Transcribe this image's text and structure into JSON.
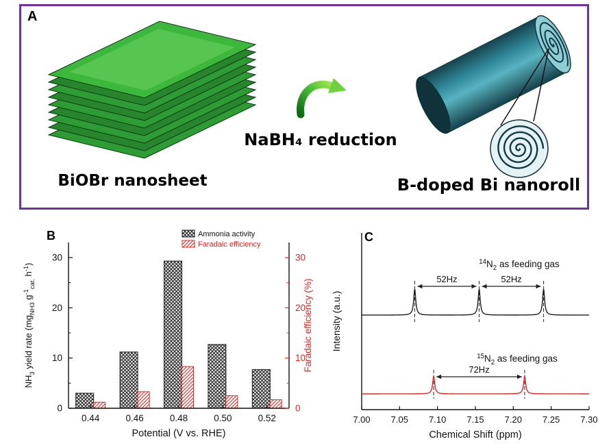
{
  "figure": {
    "panel_a": {
      "label": "A",
      "left_caption": "BiOBr nanosheet",
      "arrow_caption": "NaBH₄ reduction",
      "right_caption": "B-doped Bi nanoroll"
    },
    "panel_b": {
      "label": "B"
    },
    "panel_c": {
      "label": "C"
    }
  },
  "colors": {
    "panel_border": "#7030a0",
    "sheet_top": "#3cb83c",
    "sheet_mid": "#2d9c34",
    "sheet_dark": "#27862c",
    "sheet_edge": "#0b3a10",
    "sheet_highlight": "#6fd464",
    "roll_teal_dark": "#10323b",
    "roll_teal_light": "#8fccd4",
    "series_black": "#1c1c1c",
    "series_red": "#e8251f"
  },
  "chart_data": [
    {
      "id": "panel_b_bars",
      "type": "bar",
      "panel": "B",
      "categories": [
        "0.44",
        "0.46",
        "0.48",
        "0.50",
        "0.52"
      ],
      "series": [
        {
          "name": "Ammonia activity",
          "axis": "left",
          "color": "#1c1c1c",
          "pattern": "crosshatch",
          "values": [
            3.0,
            11.2,
            29.3,
            12.7,
            7.7
          ]
        },
        {
          "name": "Faradaic efficiency",
          "axis": "right",
          "color": "#e8251f",
          "pattern": "diagonal",
          "values": [
            1.2,
            3.3,
            8.3,
            2.5,
            1.7
          ]
        }
      ],
      "xlabel": "Potential (V vs. RHE)",
      "ylabel_left": "NH3 yield rate (mgNH3 g-1cat. h-1)",
      "ylabel_left_segments": [
        {
          "t": "NH"
        },
        {
          "t": "3",
          "s": "sub"
        },
        {
          "t": " yield rate (mg"
        },
        {
          "t": "NH3",
          "s": "sub"
        },
        {
          "t": " g"
        },
        {
          "t": "-1",
          "s": "sup"
        },
        {
          "t": "cat.",
          "s": "sub"
        },
        {
          "t": " h"
        },
        {
          "t": "-1",
          "s": "sup"
        },
        {
          "t": ")"
        }
      ],
      "ylabel_right": "Faradaic efficiency (%)",
      "ylim": [
        0,
        33
      ],
      "yticks": [
        0,
        10,
        20,
        30
      ],
      "legend_position": "top",
      "grid": false
    },
    {
      "id": "panel_c_nmr",
      "type": "line",
      "panel": "C",
      "xlabel": "Chemical Shift (ppm)",
      "ylabel": "Intensity (a.u.)",
      "xlim": [
        7.0,
        7.3
      ],
      "xticks": [
        "7.00",
        "7.05",
        "7.10",
        "7.15",
        "7.20",
        "7.25",
        "7.30"
      ],
      "series": [
        {
          "name": "14N2 as feeding gas",
          "label_segments": [
            {
              "t": "14",
              "s": "sup"
            },
            {
              "t": "N"
            },
            {
              "t": "2",
              "s": "sub"
            },
            {
              "t": " as feeding gas"
            }
          ],
          "color": "#1c1c1c",
          "peaks_ppm": [
            7.07,
            7.155,
            7.24
          ],
          "annotations": [
            {
              "label": "52Hz",
              "from": 7.07,
              "to": 7.155
            },
            {
              "label": "52Hz",
              "from": 7.155,
              "to": 7.24
            }
          ]
        },
        {
          "name": "15N2 as feeding gas",
          "label_segments": [
            {
              "t": "15",
              "s": "sup"
            },
            {
              "t": "N"
            },
            {
              "t": "2",
              "s": "sub"
            },
            {
              "t": " as feeding gas"
            }
          ],
          "color": "#e8251f",
          "peaks_ppm": [
            7.095,
            7.215
          ],
          "annotations": [
            {
              "label": "72Hz",
              "from": 7.095,
              "to": 7.215
            }
          ]
        }
      ]
    }
  ]
}
